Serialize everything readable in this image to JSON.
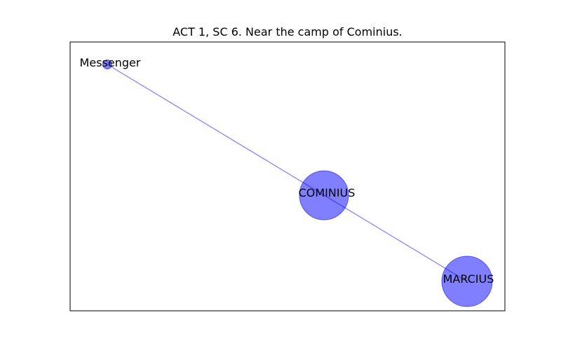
{
  "title": "ACT 1, SC 6. Near the camp of Cominius.",
  "colors": {
    "node_fill": "#0000ff",
    "edge": "#0000ff",
    "frame": "#000000"
  },
  "nodes": [
    {
      "id": "messenger",
      "label": "Messenger"
    },
    {
      "id": "cominius",
      "label": "COMINIUS"
    },
    {
      "id": "marcius",
      "label": "MARCIUS"
    }
  ],
  "edges": [
    {
      "source": "messenger",
      "target": "marcius"
    }
  ]
}
